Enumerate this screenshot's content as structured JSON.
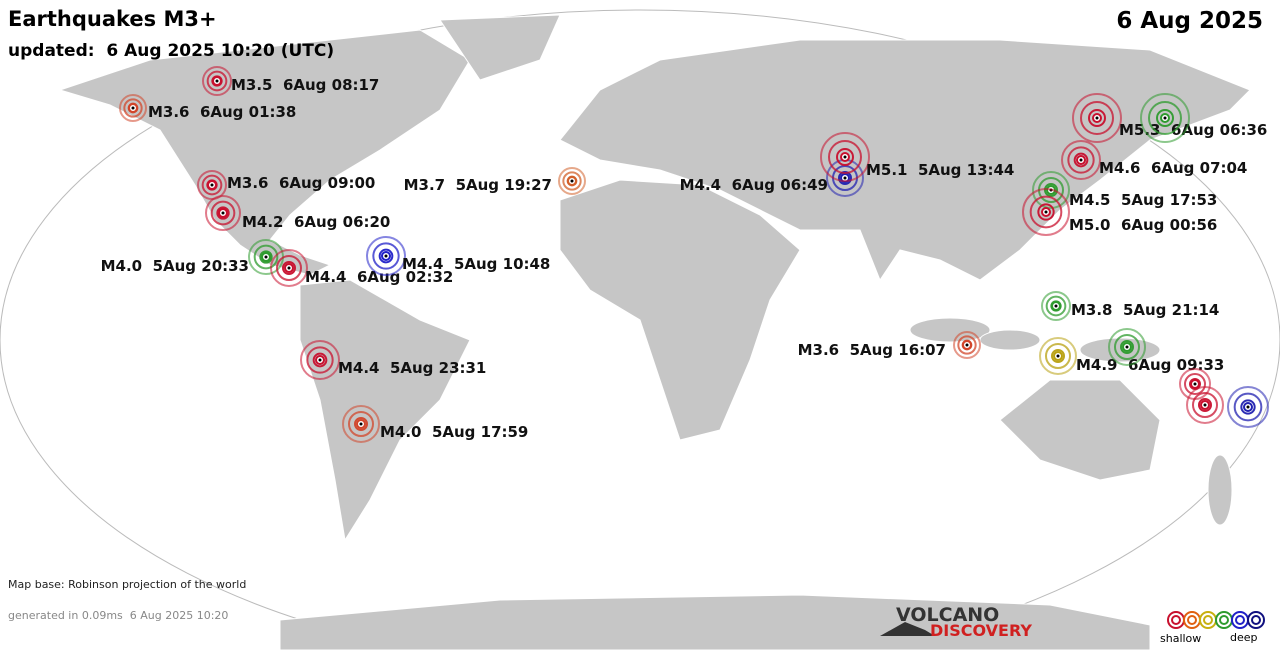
{
  "header": {
    "title": "Earthquakes M3+",
    "updated": "updated:  6 Aug 2025 10:20 (UTC)",
    "date": "6 Aug 2025"
  },
  "quakes": [
    {
      "label": "M3.5  6Aug 08:17",
      "color": "#c8102e"
    },
    {
      "label": "M3.6  6Aug 01:38",
      "color": "#d2452a"
    },
    {
      "label": "M3.6  6Aug 09:00",
      "color": "#c8102e"
    },
    {
      "label": "M4.2  6Aug 06:20",
      "color": "#c8102e"
    },
    {
      "label": "M4.0  5Aug 20:33",
      "color": "#2e9b2e"
    },
    {
      "label": "M4.4  6Aug 02:32",
      "color": "#c8102e"
    },
    {
      "label": "M4.4  5Aug 10:48",
      "color": "#2020c8"
    },
    {
      "label": "M3.7  5Aug 19:27",
      "color": "#d2602a"
    },
    {
      "label": "M4.4  6Aug 06:49",
      "color": "#2020b0"
    },
    {
      "label": "M5.1  5Aug 13:44",
      "color": "#c8102e"
    },
    {
      "label": "M5.3  6Aug 06:36",
      "color": "#c8102e"
    },
    {
      "label": "M4.6  6Aug 07:04",
      "color": "#c8102e"
    },
    {
      "label": "M4.5  5Aug 17:53",
      "color": "#2e9b2e"
    },
    {
      "label": "M5.0  6Aug 00:56",
      "color": "#c8102e"
    },
    {
      "label": "M3.8  5Aug 21:14",
      "color": "#2e9b2e"
    },
    {
      "label": "M3.6  5Aug 16:07",
      "color": "#d2452a"
    },
    {
      "label": "M4.9  6Aug 09:33",
      "color": "#b8a010"
    },
    {
      "label": "M4.4  5Aug 23:31",
      "color": "#c8102e"
    },
    {
      "label": "M4.0  5Aug 17:59",
      "color": "#d2452a"
    }
  ],
  "unlabeled_quakes": [
    {
      "color": "#2e9b2e"
    },
    {
      "color": "#2e9b2e"
    },
    {
      "color": "#c8102e"
    },
    {
      "color": "#c8102e"
    },
    {
      "color": "#2020b0"
    }
  ],
  "footer": {
    "map_base": "Map base: Robinson projection of the world",
    "generated": "generated in 0.09ms  6 Aug 2025 10:20",
    "logo_top": "VOLCANO",
    "logo_bottom": "DISCOVERY",
    "legend_shallow": "shallow",
    "legend_deep": "deep",
    "legend_colors": [
      "#c8102e",
      "#e06010",
      "#c8b010",
      "#2e9b2e",
      "#2020c8",
      "#101080"
    ]
  }
}
